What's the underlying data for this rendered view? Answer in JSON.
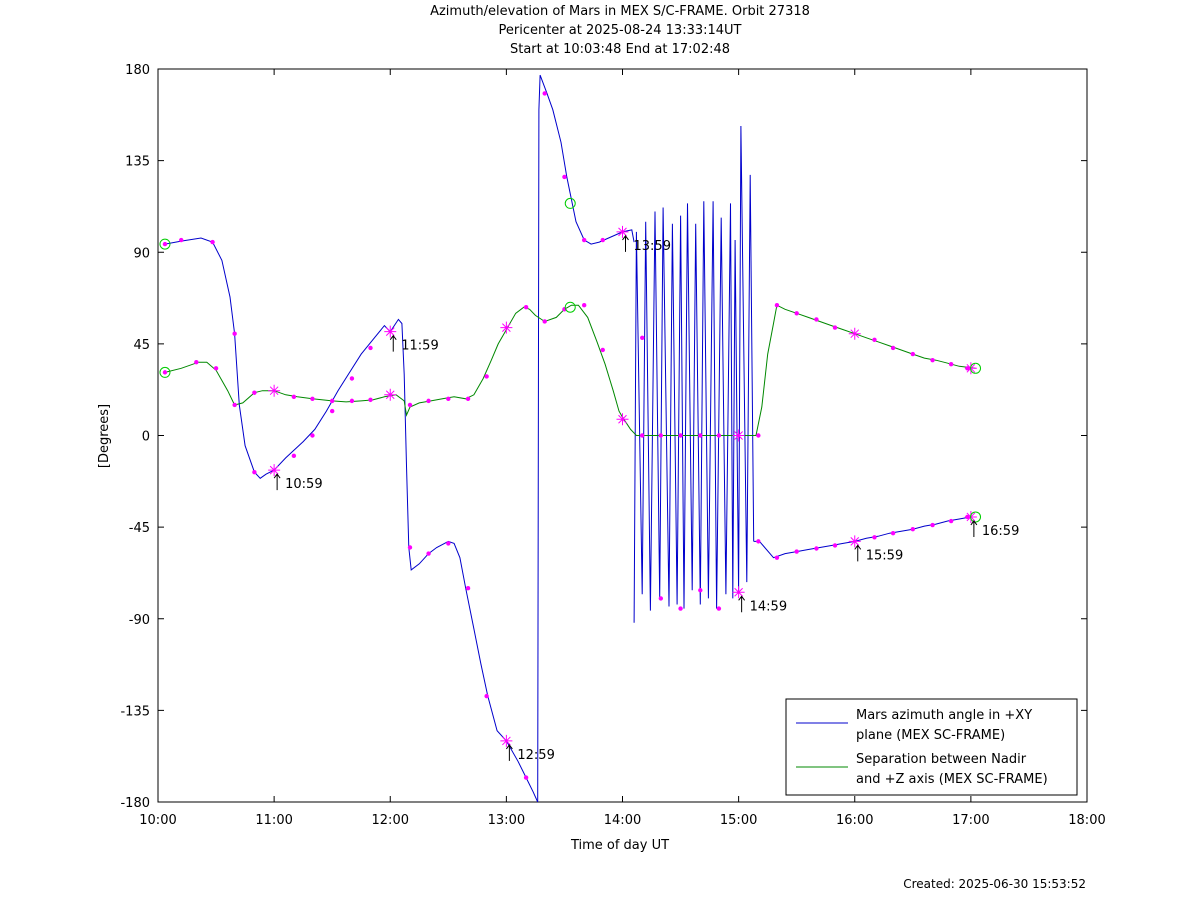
{
  "title_lines": [
    "Azimuth/elevation of Mars in MEX S/C-FRAME.  Orbit 27318",
    "Pericenter at 2025-08-24 13:33:14UT",
    "Start at 10:03:48 End at 17:02:48"
  ],
  "created": "Created: 2025-06-30 15:53:52",
  "chart_data": {
    "type": "line",
    "xlabel": "Time of day UT",
    "ylabel": "[Degrees]",
    "xlim": [
      10,
      18
    ],
    "ylim": [
      -180,
      180
    ],
    "x_ticks": [
      10,
      11,
      12,
      13,
      14,
      15,
      16,
      17,
      18
    ],
    "x_tick_labels": [
      "10:00",
      "11:00",
      "12:00",
      "13:00",
      "14:00",
      "15:00",
      "16:00",
      "17:00",
      "18:00"
    ],
    "y_ticks": [
      180,
      135,
      90,
      45,
      0,
      -45,
      -90,
      -135,
      -180
    ],
    "y_tick_labels": [
      "180",
      "135",
      "90",
      "45",
      "0",
      "-45",
      "-90",
      "-135",
      "-180"
    ],
    "legend_position": "bottom-right",
    "series": [
      {
        "name": "Mars azimuth angle in +XY plane (MEX SC-FRAME)",
        "legend_lines": [
          "Mars azimuth angle in +XY",
          "plane (MEX SC-FRAME)"
        ],
        "color": "#0000cc",
        "points": [
          [
            10.06,
            94
          ],
          [
            10.2,
            95.5
          ],
          [
            10.37,
            97
          ],
          [
            10.47,
            95
          ],
          [
            10.55,
            86
          ],
          [
            10.62,
            68
          ],
          [
            10.66,
            50
          ],
          [
            10.7,
            15
          ],
          [
            10.75,
            -5
          ],
          [
            10.83,
            -18
          ],
          [
            10.88,
            -21
          ],
          [
            10.93,
            -19
          ],
          [
            11.0,
            -17
          ],
          [
            11.1,
            -11
          ],
          [
            11.25,
            -3
          ],
          [
            11.35,
            3
          ],
          [
            11.45,
            12
          ],
          [
            11.55,
            22
          ],
          [
            11.65,
            31
          ],
          [
            11.75,
            40
          ],
          [
            11.85,
            47
          ],
          [
            11.95,
            54
          ],
          [
            12.0,
            51
          ],
          [
            12.07,
            57
          ],
          [
            12.1,
            55
          ],
          [
            12.12,
            30
          ],
          [
            12.14,
            -15
          ],
          [
            12.16,
            -55
          ],
          [
            12.18,
            -66
          ],
          [
            12.25,
            -63
          ],
          [
            12.33,
            -58
          ],
          [
            12.4,
            -55
          ],
          [
            12.5,
            -52
          ],
          [
            12.55,
            -53
          ],
          [
            12.6,
            -60
          ],
          [
            12.65,
            -75
          ],
          [
            12.72,
            -95
          ],
          [
            12.78,
            -112
          ],
          [
            12.84,
            -128
          ],
          [
            12.92,
            -145
          ],
          [
            13.0,
            -150
          ],
          [
            13.1,
            -160
          ],
          [
            13.17,
            -168
          ],
          [
            13.23,
            -175
          ],
          [
            13.27,
            -180
          ]
        ],
        "points2": [
          [
            13.27,
            -180
          ],
          [
            13.28,
            160
          ],
          [
            13.29,
            177
          ],
          [
            13.35,
            168
          ],
          [
            13.4,
            160
          ],
          [
            13.47,
            144
          ],
          [
            13.52,
            127
          ],
          [
            13.6,
            105
          ],
          [
            13.67,
            96
          ],
          [
            13.73,
            94
          ],
          [
            13.8,
            95
          ],
          [
            13.88,
            97
          ],
          [
            14.0,
            100
          ],
          [
            14.08,
            101
          ],
          [
            14.1,
            95
          ]
        ],
        "oscillation": {
          "x_start": 14.1,
          "x_end": 15.13,
          "peaks": [
            [
              14.12,
              100
            ],
            [
              14.2,
              105
            ],
            [
              14.28,
              110
            ],
            [
              14.35,
              112
            ],
            [
              14.43,
              104
            ],
            [
              14.5,
              108
            ],
            [
              14.56,
              114
            ],
            [
              14.63,
              104
            ],
            [
              14.7,
              115
            ],
            [
              14.78,
              115
            ],
            [
              14.85,
              107
            ],
            [
              14.93,
              114
            ],
            [
              14.97,
              96
            ],
            [
              15.02,
              152
            ],
            [
              15.1,
              128
            ]
          ],
          "troughs": [
            [
              14.1,
              -92
            ],
            [
              14.17,
              -78
            ],
            [
              14.24,
              -86
            ],
            [
              14.32,
              -80
            ],
            [
              14.4,
              -84
            ],
            [
              14.47,
              -83
            ],
            [
              14.53,
              -85
            ],
            [
              14.6,
              -76
            ],
            [
              14.67,
              -83
            ],
            [
              14.74,
              -80
            ],
            [
              14.81,
              -85
            ],
            [
              14.89,
              -78
            ],
            [
              14.95,
              -80
            ],
            [
              15.0,
              -77
            ],
            [
              15.07,
              -72
            ],
            [
              15.13,
              -52
            ]
          ]
        },
        "points3": [
          [
            15.13,
            -52
          ],
          [
            15.18,
            -52
          ],
          [
            15.3,
            -60
          ],
          [
            15.4,
            -58
          ],
          [
            15.5,
            -57
          ],
          [
            15.6,
            -56
          ],
          [
            15.7,
            -55
          ],
          [
            15.8,
            -54
          ],
          [
            15.9,
            -53
          ],
          [
            16.0,
            -52
          ],
          [
            16.1,
            -50.5
          ],
          [
            16.2,
            -49.5
          ],
          [
            16.3,
            -48
          ],
          [
            16.4,
            -47
          ],
          [
            16.5,
            -46
          ],
          [
            16.6,
            -44.5
          ],
          [
            16.7,
            -43.5
          ],
          [
            16.8,
            -42
          ],
          [
            16.9,
            -41
          ],
          [
            17.0,
            -40
          ]
        ]
      },
      {
        "name": "Separation between Nadir and +Z axis (MEX SC-FRAME)",
        "legend_lines": [
          "Separation between Nadir",
          "and +Z axis (MEX SC-FRAME)"
        ],
        "color": "#008800",
        "points": [
          [
            10.06,
            31
          ],
          [
            10.2,
            33
          ],
          [
            10.35,
            36
          ],
          [
            10.42,
            36
          ],
          [
            10.5,
            32
          ],
          [
            10.6,
            22
          ],
          [
            10.66,
            15
          ],
          [
            10.73,
            16
          ],
          [
            10.83,
            21
          ],
          [
            10.9,
            22
          ],
          [
            11.0,
            22
          ],
          [
            11.1,
            20
          ],
          [
            11.2,
            19
          ],
          [
            11.33,
            18
          ],
          [
            11.5,
            17
          ],
          [
            11.62,
            16.5
          ],
          [
            11.75,
            17
          ],
          [
            11.85,
            17.5
          ],
          [
            11.95,
            19
          ],
          [
            12.05,
            20
          ],
          [
            12.12,
            17
          ],
          [
            12.14,
            10
          ],
          [
            12.17,
            14
          ],
          [
            12.25,
            16
          ],
          [
            12.35,
            17
          ],
          [
            12.45,
            18
          ],
          [
            12.55,
            19
          ],
          [
            12.65,
            18
          ],
          [
            12.72,
            20
          ],
          [
            12.8,
            28
          ],
          [
            12.87,
            37
          ],
          [
            12.93,
            45
          ],
          [
            13.0,
            52
          ],
          [
            13.08,
            60
          ],
          [
            13.15,
            63
          ],
          [
            13.2,
            62
          ],
          [
            13.25,
            59
          ],
          [
            13.33,
            56
          ],
          [
            13.43,
            58
          ],
          [
            13.5,
            62
          ],
          [
            13.56,
            64
          ],
          [
            13.62,
            64
          ],
          [
            13.7,
            58
          ],
          [
            13.78,
            46
          ],
          [
            13.85,
            35
          ],
          [
            13.92,
            22
          ],
          [
            13.97,
            12
          ],
          [
            14.0,
            9
          ],
          [
            14.07,
            3
          ],
          [
            14.12,
            0
          ],
          [
            15.15,
            0
          ],
          [
            15.2,
            14
          ],
          [
            15.25,
            40
          ],
          [
            15.3,
            55
          ],
          [
            15.33,
            64
          ],
          [
            15.4,
            62
          ],
          [
            15.5,
            60
          ],
          [
            15.6,
            58
          ],
          [
            15.7,
            56
          ],
          [
            15.8,
            54
          ],
          [
            15.9,
            52
          ],
          [
            16.0,
            50
          ],
          [
            16.1,
            48
          ],
          [
            16.2,
            46
          ],
          [
            16.3,
            44
          ],
          [
            16.4,
            42
          ],
          [
            16.5,
            40
          ],
          [
            16.6,
            38
          ],
          [
            16.7,
            37
          ],
          [
            16.8,
            35.5
          ],
          [
            16.9,
            34
          ],
          [
            17.04,
            33
          ]
        ]
      }
    ],
    "annotations": [
      {
        "x": 11.0,
        "y": -17,
        "label": "10:59"
      },
      {
        "x": 12.0,
        "y": 51,
        "label": "11:59"
      },
      {
        "x": 13.0,
        "y": -150,
        "label": "12:59"
      },
      {
        "x": 14.0,
        "y": 100,
        "label": "13:59"
      },
      {
        "x": 15.0,
        "y": -77,
        "label": "14:59"
      },
      {
        "x": 16.0,
        "y": -52,
        "label": "15:59"
      },
      {
        "x": 17.0,
        "y": -40,
        "label": "16:59"
      }
    ],
    "cross_markers": [
      [
        11.0,
        -17
      ],
      [
        12.0,
        51
      ],
      [
        13.0,
        -150
      ],
      [
        14.0,
        100
      ],
      [
        15.0,
        -77
      ],
      [
        16.0,
        -52
      ],
      [
        17.0,
        -40
      ],
      [
        11.0,
        22
      ],
      [
        12.0,
        20
      ],
      [
        13.0,
        53
      ],
      [
        14.0,
        8
      ],
      [
        15.0,
        0
      ],
      [
        16.0,
        50
      ],
      [
        17.0,
        33
      ]
    ],
    "circle_markers": [
      [
        10.06,
        94
      ],
      [
        10.06,
        31
      ],
      [
        13.55,
        114
      ],
      [
        13.55,
        63
      ],
      [
        17.04,
        -40
      ],
      [
        17.04,
        33
      ]
    ],
    "dot_markers_azimuth": [
      [
        10.06,
        94
      ],
      [
        10.2,
        96
      ],
      [
        10.47,
        95
      ],
      [
        10.66,
        50
      ],
      [
        10.83,
        -18
      ],
      [
        11.17,
        -10
      ],
      [
        11.33,
        0
      ],
      [
        11.5,
        12
      ],
      [
        11.67,
        28
      ],
      [
        11.83,
        43
      ],
      [
        12.17,
        -55
      ],
      [
        12.33,
        -58
      ],
      [
        12.5,
        -53
      ],
      [
        12.67,
        -75
      ],
      [
        12.83,
        -128
      ],
      [
        13.17,
        -168
      ],
      [
        13.33,
        168
      ],
      [
        13.5,
        127
      ],
      [
        13.67,
        96
      ],
      [
        13.83,
        96
      ],
      [
        14.17,
        48
      ],
      [
        14.33,
        -80
      ],
      [
        14.5,
        -85
      ],
      [
        14.67,
        -76
      ],
      [
        14.83,
        -85
      ],
      [
        15.17,
        -52
      ],
      [
        15.33,
        -60
      ],
      [
        15.5,
        -57
      ],
      [
        15.67,
        -55.5
      ],
      [
        15.83,
        -54
      ],
      [
        16.17,
        -50
      ],
      [
        16.33,
        -48
      ],
      [
        16.5,
        -46
      ],
      [
        16.67,
        -44
      ],
      [
        16.83,
        -42
      ],
      [
        16.97,
        -40
      ]
    ],
    "dot_markers_separation": [
      [
        10.06,
        31
      ],
      [
        10.33,
        36
      ],
      [
        10.5,
        33
      ],
      [
        10.66,
        15
      ],
      [
        10.83,
        21
      ],
      [
        11.17,
        19
      ],
      [
        11.33,
        18
      ],
      [
        11.5,
        17
      ],
      [
        11.67,
        17
      ],
      [
        11.83,
        17.5
      ],
      [
        12.17,
        15
      ],
      [
        12.33,
        17
      ],
      [
        12.5,
        18
      ],
      [
        12.67,
        18
      ],
      [
        12.83,
        29
      ],
      [
        13.17,
        63
      ],
      [
        13.33,
        56
      ],
      [
        13.5,
        62
      ],
      [
        13.67,
        64
      ],
      [
        13.83,
        42
      ],
      [
        14.17,
        0
      ],
      [
        14.33,
        0
      ],
      [
        14.5,
        0
      ],
      [
        14.67,
        0
      ],
      [
        14.83,
        0
      ],
      [
        15.17,
        0
      ],
      [
        15.33,
        64
      ],
      [
        15.5,
        60
      ],
      [
        15.67,
        57
      ],
      [
        15.83,
        53
      ],
      [
        16.17,
        47
      ],
      [
        16.33,
        43
      ],
      [
        16.5,
        40
      ],
      [
        16.67,
        37
      ],
      [
        16.83,
        35
      ],
      [
        16.97,
        33
      ]
    ]
  }
}
